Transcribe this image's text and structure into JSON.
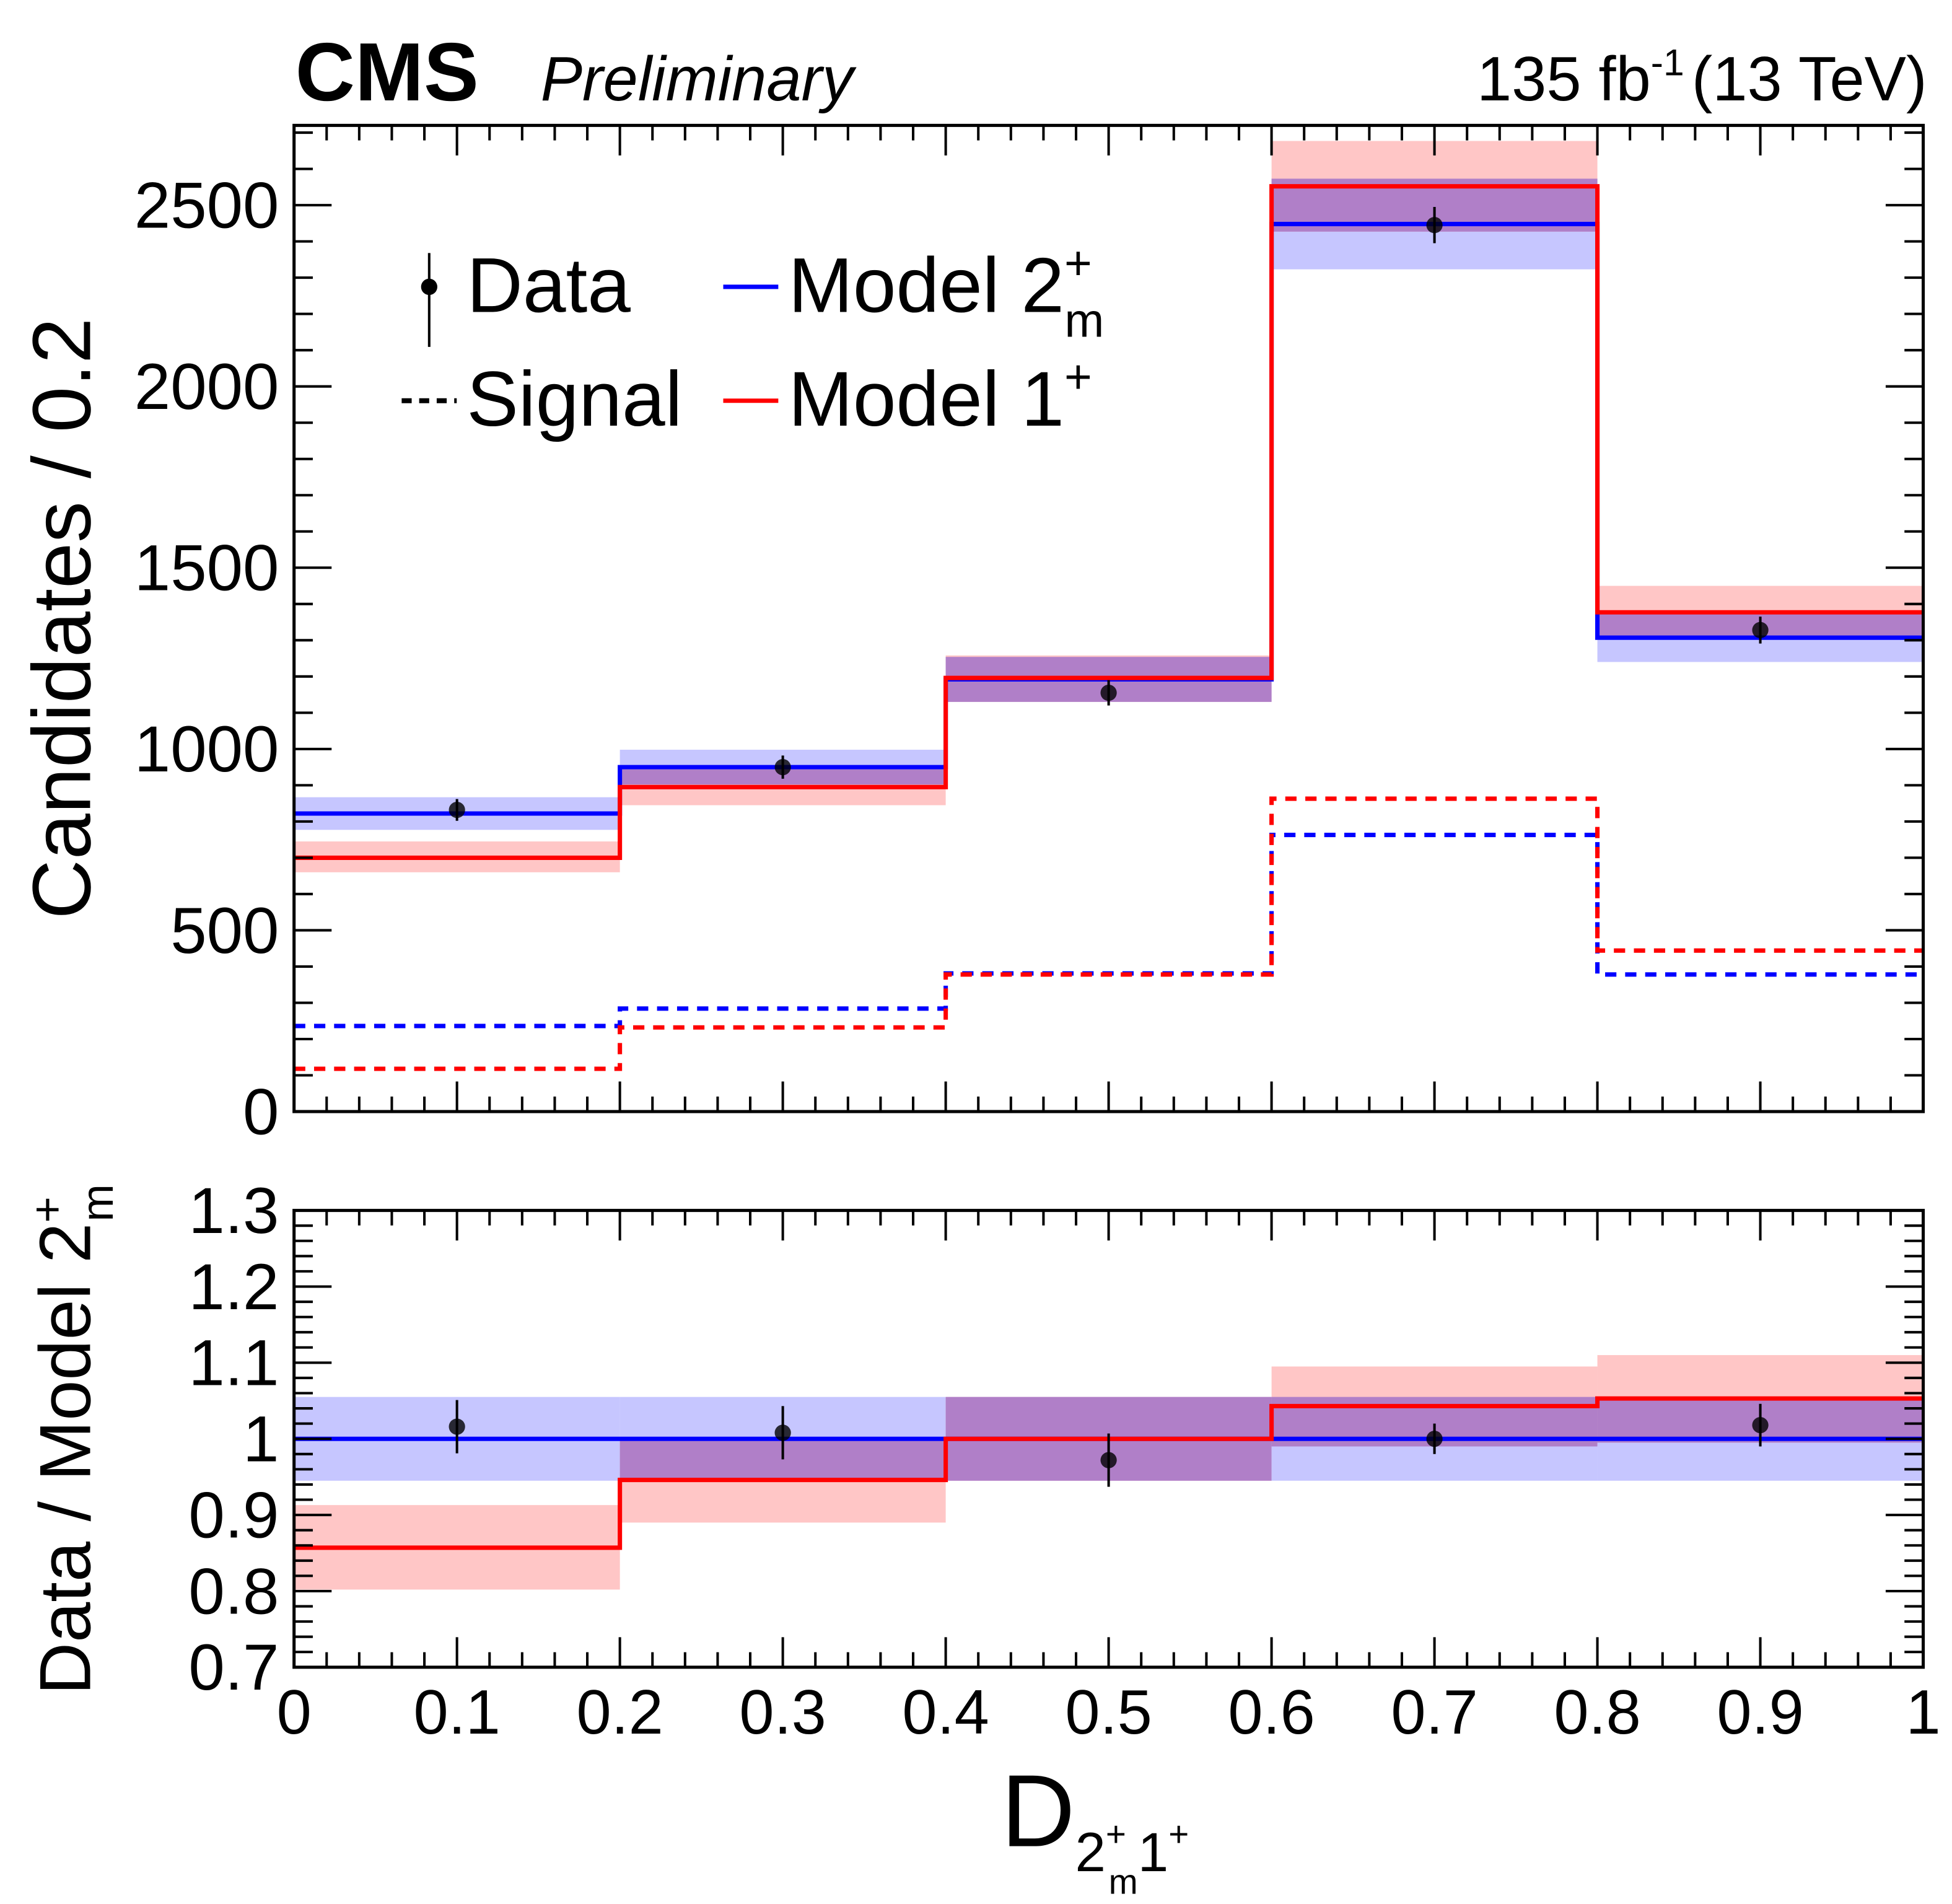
{
  "header": {
    "experiment": "CMS",
    "status": "Preliminary",
    "lumi": "135 fb",
    "lumi_sup": "-1",
    "energy": "(13 TeV)"
  },
  "colors": {
    "model_2m": "#0000ff",
    "model_1": "#ff0000",
    "band_2m": "#b3b3ff",
    "band_1": "#ffb3b3",
    "overlap": "#b07fc8",
    "data": "#000000"
  },
  "chart_data": [
    {
      "type": "histogram",
      "ylabel": "Candidates / 0.2",
      "ylim": [
        0,
        2720
      ],
      "xlim": [
        0,
        1
      ],
      "bin_edges": [
        0,
        0.2,
        0.4,
        0.6,
        0.8,
        1.0
      ],
      "y_ticks": [
        "0",
        "500",
        "1000",
        "1500",
        "2000",
        "2500"
      ],
      "legend": {
        "placement": "top-left",
        "entries": [
          {
            "key": "data",
            "text": "Data",
            "sup": "",
            "sub": ""
          },
          {
            "key": "model_2m",
            "text": "Model 2",
            "sup": "+",
            "sub": "m"
          },
          {
            "key": "signal",
            "text": "Signal",
            "sup": "",
            "sub": ""
          },
          {
            "key": "model_1",
            "text": "Model 1",
            "sup": "+",
            "sub": ""
          }
        ]
      },
      "data": {
        "x": [
          0.1,
          0.3,
          0.5,
          0.7,
          0.9
        ],
        "y": [
          832,
          950,
          1155,
          2445,
          1328
        ],
        "err": [
          30,
          32,
          35,
          50,
          37
        ]
      },
      "series": [
        {
          "name": "Model 2m+",
          "key": "model_2m",
          "values": [
            822,
            950,
            1192,
            2448,
            1307
          ],
          "band_low": [
            777,
            902,
            1130,
            2323,
            1240
          ],
          "band_high": [
            867,
            998,
            1254,
            2573,
            1374
          ]
        },
        {
          "name": "Model 1+",
          "key": "model_1",
          "values": [
            700,
            895,
            1196,
            2552,
            1377
          ],
          "band_low": [
            660,
            845,
            1130,
            2427,
            1304
          ],
          "band_high": [
            745,
            945,
            1258,
            2677,
            1450
          ]
        },
        {
          "name": "Signal 2m+",
          "key": "signal_2m",
          "dashed": true,
          "values": [
            236,
            284,
            381,
            763,
            378
          ]
        },
        {
          "name": "Signal 1+",
          "key": "signal_1",
          "dashed": true,
          "values": [
            118,
            232,
            378,
            863,
            444
          ]
        }
      ]
    },
    {
      "type": "ratio",
      "ylabel": "Data / Model 2",
      "ylabel_sup": "+",
      "ylabel_sub": "m",
      "ylim": [
        0.7,
        1.3
      ],
      "y_ticks": [
        "0.7",
        "0.8",
        "0.9",
        "1",
        "1.1",
        "1.2",
        "1.3"
      ],
      "x_ticks": [
        "0",
        "0.1",
        "0.2",
        "0.3",
        "0.4",
        "0.5",
        "0.6",
        "0.7",
        "0.8",
        "0.9",
        "1"
      ],
      "xlabel": "D",
      "xlabel_sub1": "2",
      "xlabel_sub1_sup": "+",
      "xlabel_sub1_sub": "m",
      "xlabel_sub2": "1",
      "xlabel_sub2_sup": "+",
      "data": {
        "y": [
          1.016,
          1.008,
          0.972,
          1.0,
          1.018
        ],
        "err": [
          0.035,
          0.035,
          0.035,
          0.02,
          0.028
        ]
      },
      "series": [
        {
          "key": "model_2m",
          "values": [
            1.0,
            1.0,
            1.0,
            1.0,
            1.0
          ],
          "band_low": [
            0.945,
            0.945,
            0.945,
            0.945,
            0.945
          ],
          "band_high": [
            1.055,
            1.055,
            1.055,
            1.055,
            1.055
          ]
        },
        {
          "key": "model_1",
          "values": [
            0.857,
            0.946,
            1.0,
            1.043,
            1.053
          ],
          "band_low": [
            0.802,
            0.89,
            0.945,
            0.99,
            0.995
          ],
          "band_high": [
            0.913,
            1.0,
            1.055,
            1.095,
            1.11
          ]
        }
      ]
    }
  ]
}
